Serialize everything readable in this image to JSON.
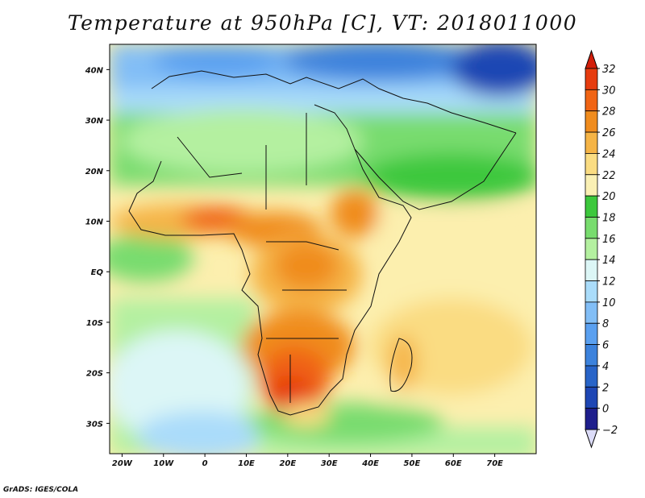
{
  "title": "Temperature at 950hPa [C], VT: 2018011000",
  "footer": "GrADS: IGES/COLA",
  "map": {
    "lon_range": [
      -23,
      80
    ],
    "lat_range": [
      -36,
      45
    ],
    "lon_ticks": [
      {
        "value": -20,
        "label": "20W"
      },
      {
        "value": -10,
        "label": "10W"
      },
      {
        "value": 0,
        "label": "0"
      },
      {
        "value": 10,
        "label": "10E"
      },
      {
        "value": 20,
        "label": "20E"
      },
      {
        "value": 30,
        "label": "30E"
      },
      {
        "value": 40,
        "label": "40E"
      },
      {
        "value": 50,
        "label": "50E"
      },
      {
        "value": 60,
        "label": "60E"
      },
      {
        "value": 70,
        "label": "70E"
      }
    ],
    "lat_ticks": [
      {
        "value": 40,
        "label": "40N"
      },
      {
        "value": 30,
        "label": "30N"
      },
      {
        "value": 20,
        "label": "20N"
      },
      {
        "value": 10,
        "label": "10N"
      },
      {
        "value": 0,
        "label": "EQ"
      },
      {
        "value": -10,
        "label": "10S"
      },
      {
        "value": -20,
        "label": "20S"
      },
      {
        "value": -30,
        "label": "30S"
      }
    ]
  },
  "colorbar": {
    "levels": [
      -2,
      0,
      2,
      4,
      6,
      8,
      10,
      12,
      14,
      16,
      18,
      20,
      22,
      24,
      26,
      28,
      30,
      32
    ],
    "colors": [
      "#dcdcf8",
      "#1e1e8c",
      "#1e46b4",
      "#2864c8",
      "#3c82dc",
      "#5aa0f0",
      "#82bef6",
      "#aadcfa",
      "#dcf6f6",
      "#b4f0a0",
      "#78dc6e",
      "#3cc83c",
      "#faf0b4",
      "#fadc82",
      "#f5b446",
      "#f08c1e",
      "#f06414",
      "#e63c0f",
      "#d21e0a"
    ],
    "under_color": "#dcdcf8",
    "over_color": "#d21e0a"
  }
}
